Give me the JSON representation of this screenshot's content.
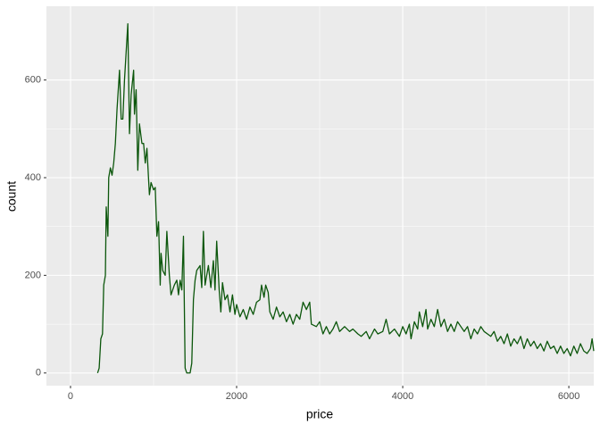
{
  "chart_data": {
    "type": "line",
    "xlabel": "price",
    "ylabel": "count",
    "x": [
      326,
      345,
      365,
      385,
      400,
      420,
      430,
      450,
      460,
      480,
      500,
      520,
      540,
      560,
      590,
      610,
      630,
      650,
      690,
      710,
      730,
      760,
      770,
      790,
      810,
      830,
      860,
      880,
      900,
      920,
      950,
      970,
      1000,
      1020,
      1040,
      1060,
      1080,
      1090,
      1110,
      1140,
      1160,
      1190,
      1210,
      1250,
      1280,
      1300,
      1320,
      1340,
      1360,
      1380,
      1400,
      1440,
      1460,
      1480,
      1500,
      1520,
      1560,
      1580,
      1600,
      1620,
      1660,
      1690,
      1720,
      1740,
      1760,
      1790,
      1810,
      1830,
      1860,
      1890,
      1920,
      1950,
      1980,
      2000,
      2040,
      2080,
      2120,
      2160,
      2200,
      2240,
      2280,
      2300,
      2330,
      2350,
      2380,
      2400,
      2440,
      2480,
      2520,
      2560,
      2600,
      2640,
      2680,
      2720,
      2760,
      2800,
      2840,
      2880,
      2900,
      2960,
      3000,
      3040,
      3080,
      3120,
      3160,
      3200,
      3240,
      3300,
      3360,
      3400,
      3460,
      3500,
      3560,
      3600,
      3660,
      3700,
      3760,
      3800,
      3840,
      3900,
      3960,
      4000,
      4040,
      4080,
      4100,
      4140,
      4180,
      4200,
      4240,
      4280,
      4300,
      4340,
      4380,
      4420,
      4460,
      4500,
      4540,
      4580,
      4620,
      4660,
      4700,
      4740,
      4780,
      4820,
      4860,
      4900,
      4940,
      4980,
      5020,
      5060,
      5100,
      5140,
      5180,
      5220,
      5260,
      5300,
      5340,
      5380,
      5420,
      5460,
      5500,
      5540,
      5580,
      5620,
      5660,
      5700,
      5740,
      5780,
      5820,
      5860,
      5900,
      5940,
      5980,
      6020,
      6060,
      6100,
      6140,
      6180,
      6220,
      6260,
      6280,
      6300
    ],
    "series": [
      {
        "color": "#0b560b",
        "values": [
          0,
          10,
          70,
          80,
          180,
          200,
          340,
          280,
          400,
          420,
          405,
          430,
          470,
          540,
          620,
          520,
          520,
          600,
          715,
          490,
          570,
          620,
          530,
          580,
          415,
          510,
          470,
          470,
          430,
          460,
          365,
          390,
          375,
          380,
          280,
          310,
          180,
          245,
          210,
          200,
          290,
          200,
          160,
          180,
          190,
          160,
          190,
          170,
          280,
          10,
          0,
          0,
          20,
          150,
          190,
          210,
          220,
          175,
          290,
          180,
          220,
          175,
          230,
          170,
          270,
          170,
          125,
          185,
          150,
          160,
          125,
          160,
          120,
          140,
          115,
          130,
          110,
          135,
          120,
          145,
          150,
          180,
          155,
          180,
          165,
          125,
          110,
          135,
          115,
          125,
          105,
          120,
          100,
          120,
          110,
          145,
          130,
          145,
          100,
          95,
          105,
          80,
          95,
          80,
          90,
          105,
          85,
          95,
          85,
          90,
          80,
          75,
          85,
          70,
          90,
          80,
          85,
          110,
          80,
          90,
          75,
          95,
          80,
          100,
          70,
          105,
          90,
          125,
          95,
          130,
          90,
          110,
          95,
          130,
          95,
          110,
          85,
          100,
          85,
          105,
          95,
          85,
          95,
          70,
          90,
          80,
          95,
          85,
          80,
          75,
          85,
          65,
          75,
          60,
          80,
          55,
          70,
          60,
          75,
          50,
          70,
          55,
          65,
          50,
          60,
          45,
          65,
          50,
          55,
          40,
          55,
          40,
          50,
          35,
          55,
          40,
          60,
          45,
          40,
          50,
          70,
          45
        ]
      }
    ],
    "xlim": [
      -290,
      6300
    ],
    "ylim": [
      -26,
      751
    ],
    "xticks": [
      0,
      2000,
      4000,
      6000
    ],
    "yticks": [
      0,
      200,
      400,
      600
    ],
    "grid": true
  }
}
